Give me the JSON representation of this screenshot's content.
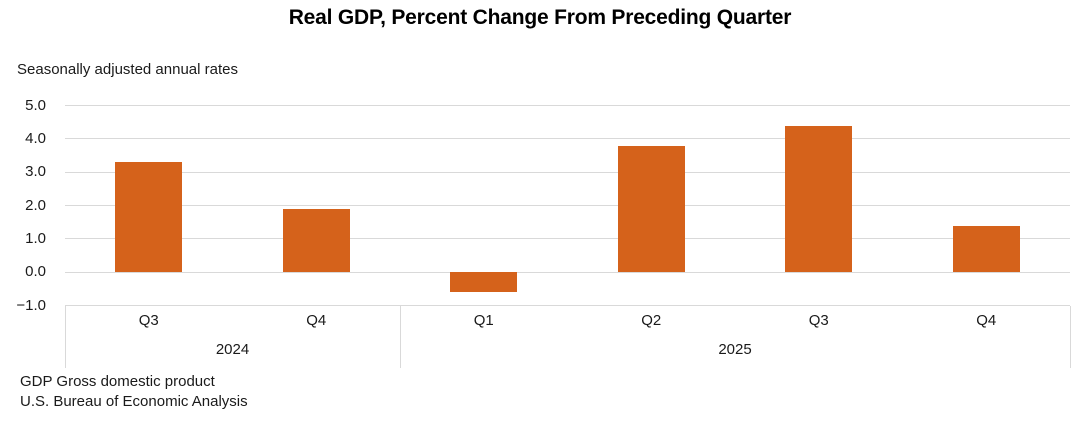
{
  "title": "Real GDP, Percent Change From Preceding Quarter",
  "subtitle": "Seasonally adjusted annual rates",
  "footer": {
    "line1": "GDP Gross domestic product",
    "line2": "U.S. Bureau of Economic Analysis"
  },
  "colors": {
    "bar": "#D5621B",
    "gridline": "#D9D9D9",
    "axis_line": "#D9D9D9",
    "text": "#1A1A1A",
    "title_text": "#000000"
  },
  "chart_data": {
    "type": "bar",
    "title": "Real GDP, Percent Change From Preceding Quarter",
    "subtitle": "Seasonally adjusted annual rates",
    "categories": [
      "Q3",
      "Q4",
      "Q1",
      "Q2",
      "Q3",
      "Q4"
    ],
    "values": [
      3.3,
      1.9,
      -0.6,
      3.8,
      4.4,
      1.4
    ],
    "year_groups": [
      {
        "label": "2024",
        "span": 2
      },
      {
        "label": "2025",
        "span": 4
      }
    ],
    "xlabel": "",
    "ylabel": "",
    "ylim": [
      -1.0,
      5.0
    ],
    "yticks": [
      5,
      4,
      3,
      2,
      1,
      0,
      -1
    ],
    "ytick_labels": [
      "5.0",
      "4.0",
      "3.0",
      "2.0",
      "1.0",
      "0.0",
      "−1.0"
    ],
    "grid": true,
    "legend": "none"
  }
}
